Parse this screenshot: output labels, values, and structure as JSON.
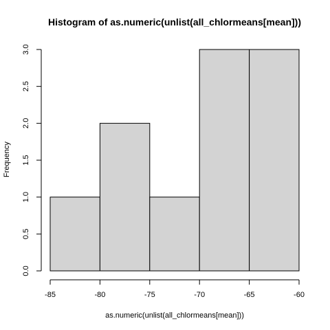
{
  "chart_data": {
    "type": "bar",
    "title": "Histogram of as.numeric(unlist(all_chlormeans[mean]))",
    "xlabel": "as.numeric(unlist(all_chlormeans[mean]))",
    "ylabel": "Frequency",
    "bins": [
      {
        "from": -85,
        "to": -80,
        "count": 1
      },
      {
        "from": -80,
        "to": -75,
        "count": 2
      },
      {
        "from": -75,
        "to": -70,
        "count": 1
      },
      {
        "from": -70,
        "to": -65,
        "count": 3
      },
      {
        "from": -65,
        "to": -60,
        "count": 3
      }
    ],
    "categories": [
      "-85 to -80",
      "-80 to -75",
      "-75 to -70",
      "-70 to -65",
      "-65 to -60"
    ],
    "values": [
      1,
      2,
      1,
      3,
      3
    ],
    "xlim": [
      -85,
      -60
    ],
    "ylim": [
      0,
      3
    ],
    "x_ticks": [
      -85,
      -80,
      -75,
      -70,
      -65,
      -60
    ],
    "x_tick_labels": [
      "-85",
      "-80",
      "-75",
      "-70",
      "-65",
      "-60"
    ],
    "y_ticks": [
      0,
      0.5,
      1,
      1.5,
      2,
      2.5,
      3
    ],
    "y_tick_labels": [
      "0.0",
      "0.5",
      "1.0",
      "1.5",
      "2.0",
      "2.5",
      "3.0"
    ],
    "grid": false,
    "bar_fill": "#d3d3d3",
    "bar_stroke": "#000000"
  }
}
